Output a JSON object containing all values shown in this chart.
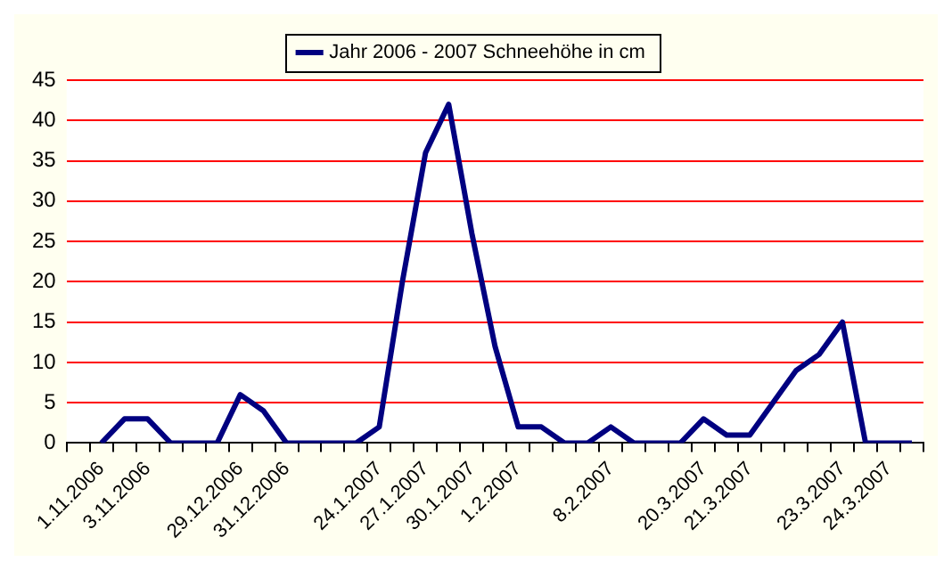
{
  "chart_data": {
    "type": "line",
    "categories": [
      null,
      "1.11.2006",
      null,
      "3.11.2006",
      null,
      null,
      null,
      "29.12.2006",
      null,
      "31.12.2006",
      null,
      null,
      null,
      "24.1.2007",
      null,
      "27.1.2007",
      null,
      "30.1.2007",
      null,
      "1.2.2007",
      null,
      null,
      null,
      "8.2.2007",
      null,
      null,
      null,
      "20.3.2007",
      null,
      "21.3.2007",
      null,
      null,
      null,
      "23.3.2007",
      null,
      "24.3.2007",
      null
    ],
    "series": [
      {
        "name": "Jahr 2006 - 2007 Schneehöhe in cm",
        "color": "#000080",
        "values": [
          null,
          0,
          3,
          3,
          0,
          0,
          0,
          6,
          4,
          0,
          0,
          0,
          0,
          2,
          20,
          36,
          42,
          26,
          12,
          2,
          2,
          0,
          0,
          2,
          0,
          0,
          0,
          3,
          1,
          1,
          5,
          9,
          11,
          15,
          0,
          0,
          0
        ]
      }
    ],
    "ylim": [
      0,
      45
    ],
    "yticks": [
      0,
      5,
      10,
      15,
      20,
      25,
      30,
      35,
      40,
      45
    ],
    "grid": "y",
    "legend": "top",
    "marker": "none",
    "line_style": "solid"
  }
}
